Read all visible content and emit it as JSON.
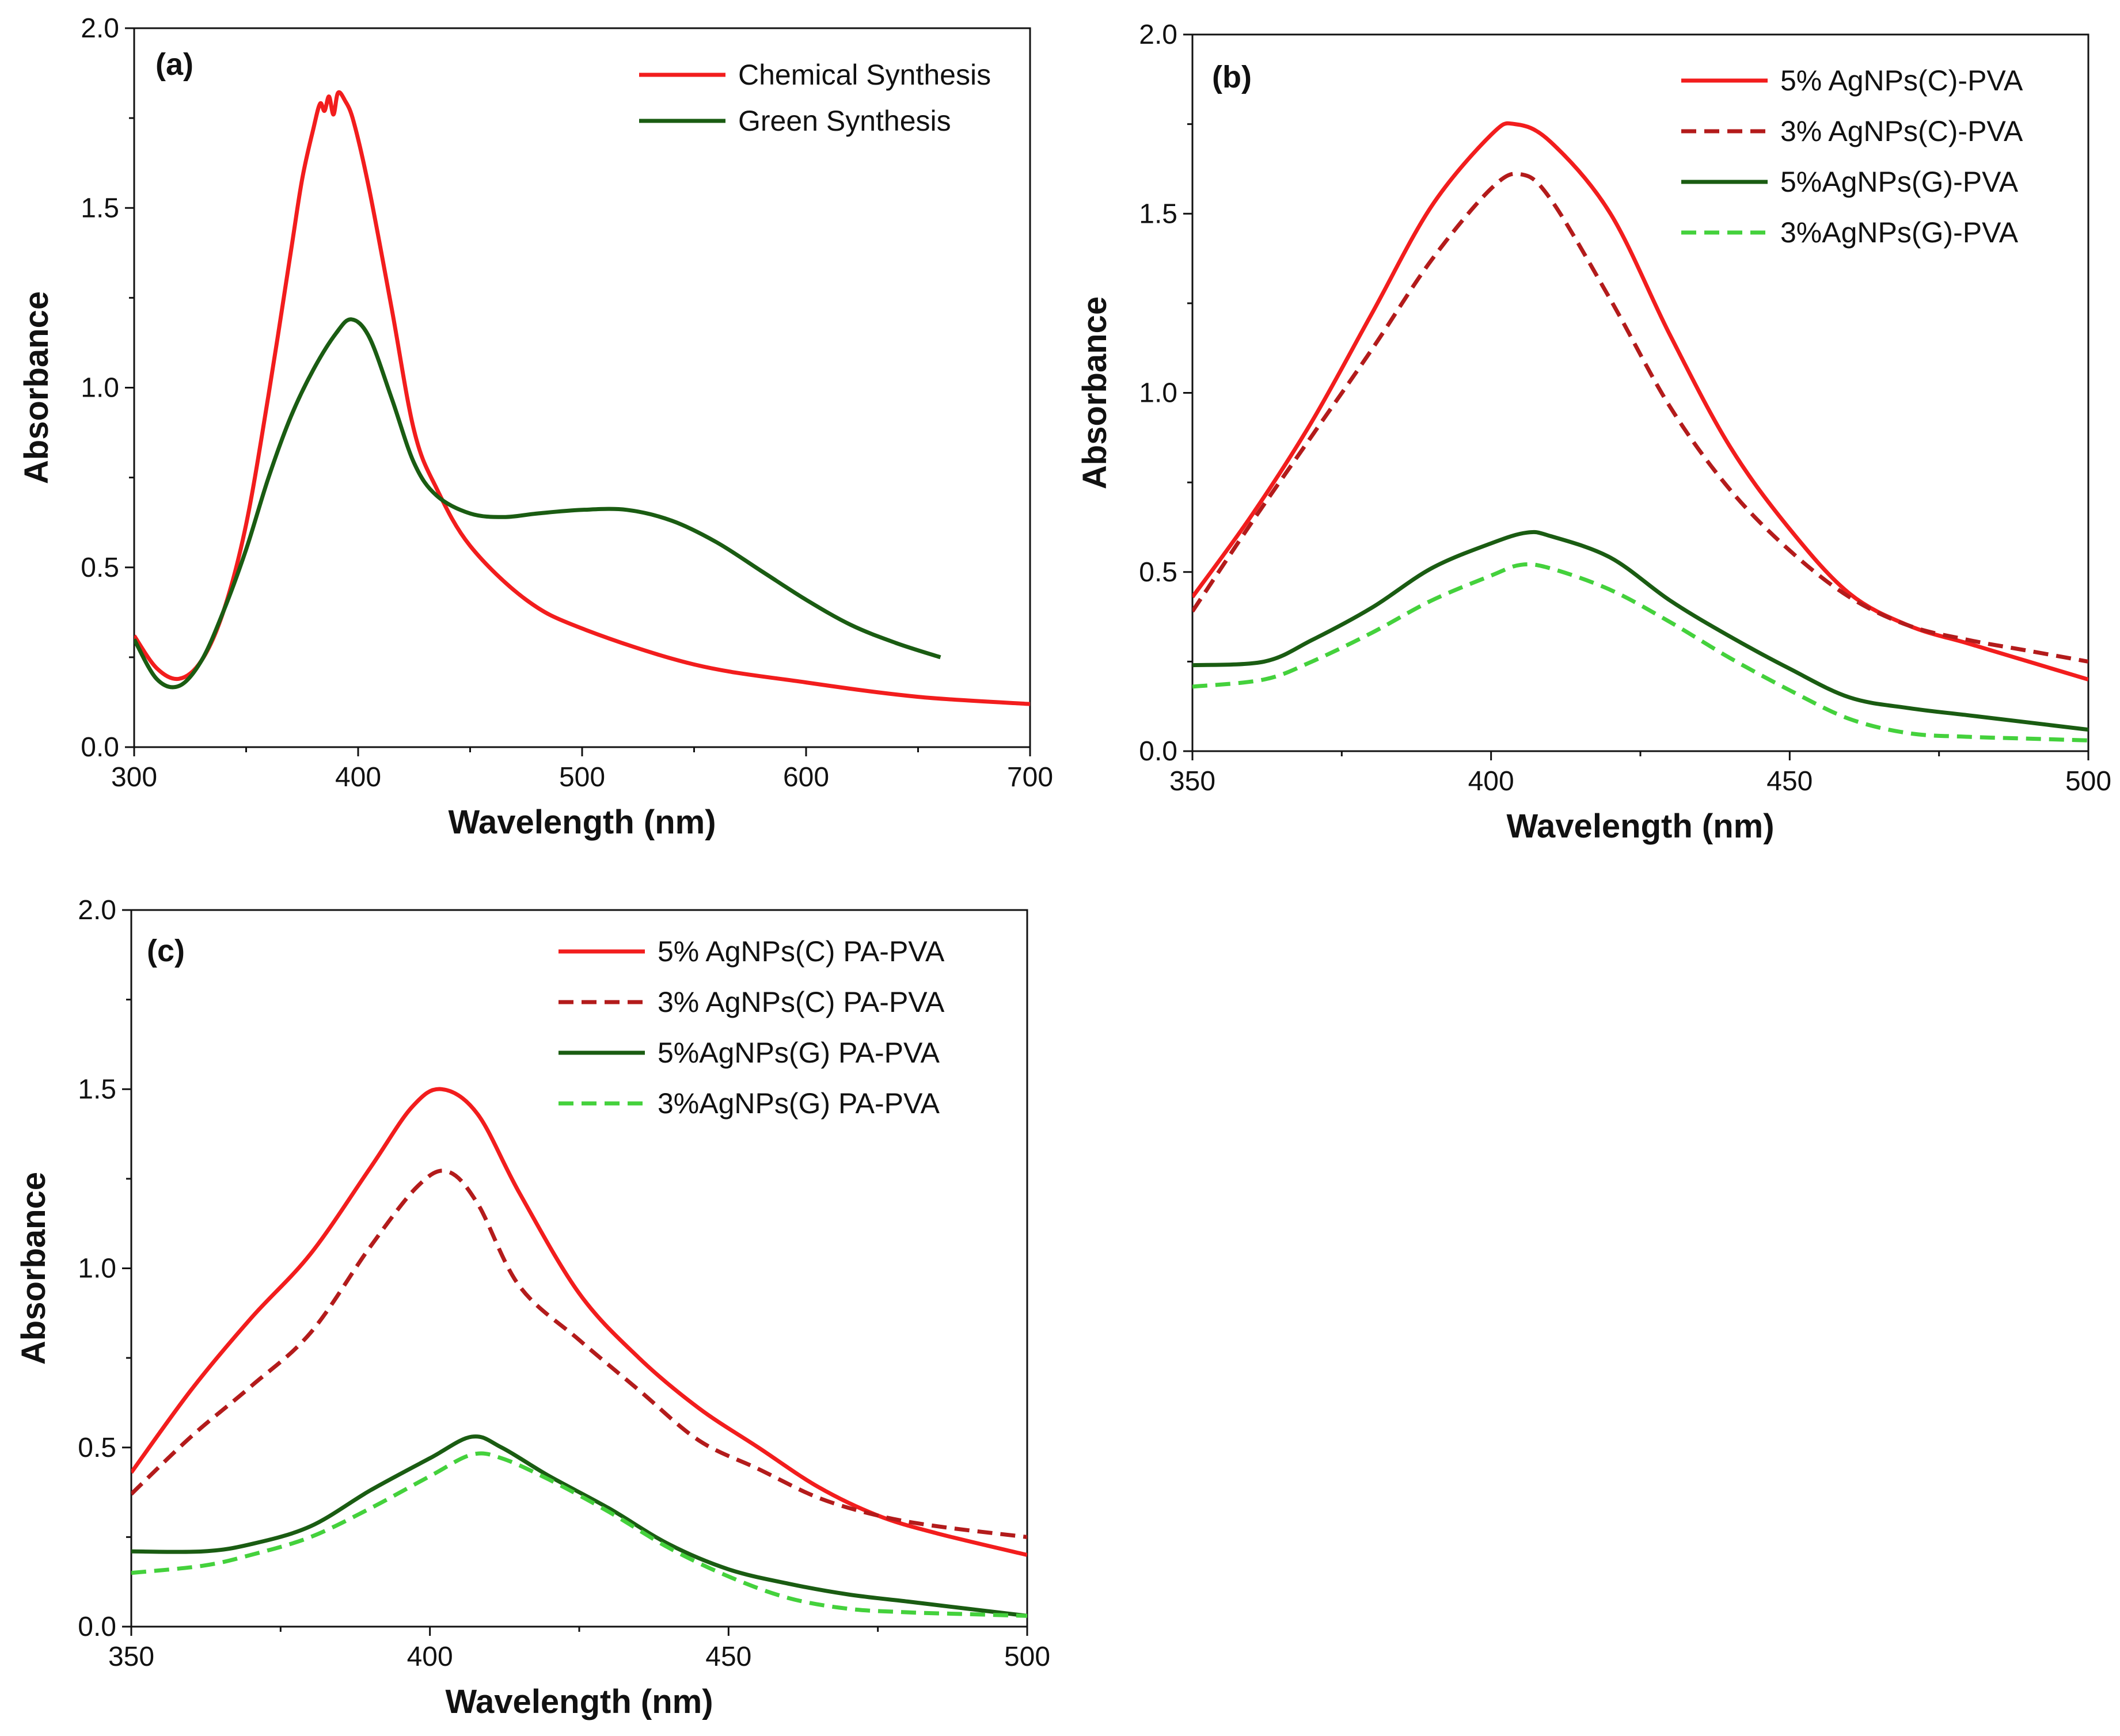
{
  "colors": {
    "red": "#f21d1d",
    "darkred": "#b31b1b",
    "darkgreen": "#1a5c12",
    "lightgreen": "#44d13c"
  },
  "chart_data": [
    {
      "type": "line",
      "panel_label": "(a)",
      "xlabel": "Wavelength (nm)",
      "ylabel": "Absorbance",
      "xlim": [
        300,
        700
      ],
      "ylim": [
        0,
        2.0
      ],
      "xticks": [
        300,
        400,
        500,
        600,
        700
      ],
      "yticks": [
        0.0,
        0.5,
        1.0,
        1.5,
        2.0
      ],
      "legend": "top-right",
      "series": [
        {
          "name": "Chemical Synthesis",
          "color": "red",
          "dash": "solid",
          "x": [
            300,
            310,
            320,
            330,
            340,
            350,
            360,
            370,
            375,
            380,
            383,
            385,
            387,
            389,
            391,
            394,
            398,
            405,
            415,
            425,
            435,
            450,
            475,
            500,
            550,
            600,
            650,
            700
          ],
          "y": [
            0.31,
            0.22,
            0.19,
            0.24,
            0.38,
            0.62,
            0.98,
            1.38,
            1.58,
            1.72,
            1.79,
            1.77,
            1.81,
            1.76,
            1.82,
            1.8,
            1.74,
            1.55,
            1.22,
            0.88,
            0.72,
            0.56,
            0.41,
            0.33,
            0.23,
            0.18,
            0.14,
            0.12
          ]
        },
        {
          "name": "Green Synthesis",
          "color": "darkgreen",
          "dash": "solid",
          "x": [
            300,
            310,
            320,
            330,
            340,
            350,
            360,
            370,
            380,
            390,
            397,
            405,
            415,
            425,
            435,
            450,
            465,
            480,
            500,
            520,
            540,
            560,
            580,
            600,
            620,
            640,
            660
          ],
          "y": [
            0.3,
            0.19,
            0.17,
            0.24,
            0.38,
            0.55,
            0.75,
            0.92,
            1.05,
            1.15,
            1.19,
            1.14,
            0.97,
            0.79,
            0.7,
            0.65,
            0.64,
            0.65,
            0.66,
            0.66,
            0.63,
            0.57,
            0.49,
            0.41,
            0.34,
            0.29,
            0.25
          ]
        }
      ]
    },
    {
      "type": "line",
      "panel_label": "(b)",
      "xlabel": "Wavelength (nm)",
      "ylabel": "Absorbance",
      "xlim": [
        350,
        500
      ],
      "ylim": [
        0,
        2.0
      ],
      "xticks": [
        350,
        400,
        450,
        500
      ],
      "yticks": [
        0.0,
        0.5,
        1.0,
        1.5,
        2.0
      ],
      "legend": "top-right",
      "series": [
        {
          "name": "5% AgNPs(C)-PVA",
          "color": "red",
          "dash": "solid",
          "x": [
            350,
            360,
            370,
            380,
            390,
            400,
            404,
            410,
            420,
            430,
            440,
            450,
            460,
            470,
            480,
            490,
            500
          ],
          "y": [
            0.43,
            0.66,
            0.92,
            1.22,
            1.52,
            1.72,
            1.75,
            1.7,
            1.5,
            1.16,
            0.85,
            0.62,
            0.44,
            0.35,
            0.3,
            0.25,
            0.2
          ]
        },
        {
          "name": "3% AgNPs(C)-PVA",
          "color": "darkred",
          "dash": "dashed",
          "x": [
            350,
            360,
            370,
            380,
            390,
            400,
            405,
            410,
            420,
            430,
            440,
            450,
            460,
            470,
            480,
            490,
            500
          ],
          "y": [
            0.39,
            0.64,
            0.88,
            1.12,
            1.37,
            1.57,
            1.61,
            1.54,
            1.26,
            0.96,
            0.73,
            0.56,
            0.43,
            0.35,
            0.31,
            0.28,
            0.25
          ]
        },
        {
          "name": "5%AgNPs(G)-PVA",
          "color": "darkgreen",
          "dash": "solid",
          "x": [
            350,
            362,
            370,
            380,
            390,
            400,
            406,
            410,
            420,
            430,
            440,
            450,
            460,
            470,
            480,
            490,
            500
          ],
          "y": [
            0.24,
            0.25,
            0.31,
            0.4,
            0.51,
            0.58,
            0.61,
            0.6,
            0.54,
            0.42,
            0.32,
            0.23,
            0.15,
            0.12,
            0.1,
            0.08,
            0.06
          ]
        },
        {
          "name": "3%AgNPs(G)-PVA",
          "color": "lightgreen",
          "dash": "dashed",
          "x": [
            350,
            362,
            370,
            380,
            390,
            400,
            405,
            410,
            420,
            430,
            440,
            450,
            460,
            470,
            480,
            490,
            500
          ],
          "y": [
            0.18,
            0.2,
            0.25,
            0.33,
            0.42,
            0.49,
            0.52,
            0.51,
            0.45,
            0.36,
            0.26,
            0.17,
            0.09,
            0.05,
            0.04,
            0.035,
            0.03
          ]
        }
      ]
    },
    {
      "type": "line",
      "panel_label": "(c)",
      "xlabel": "Wavelength (nm)",
      "ylabel": "Absorbance",
      "xlim": [
        350,
        500
      ],
      "ylim": [
        0,
        2.0
      ],
      "xticks": [
        350,
        400,
        450,
        500
      ],
      "yticks": [
        0.0,
        0.5,
        1.0,
        1.5,
        2.0
      ],
      "legend": "top-right",
      "series": [
        {
          "name": "5% AgNPs(C) PA-PVA",
          "color": "red",
          "dash": "solid",
          "x": [
            350,
            360,
            370,
            380,
            390,
            397,
            402,
            408,
            415,
            425,
            435,
            445,
            455,
            465,
            475,
            485,
            500
          ],
          "y": [
            0.43,
            0.66,
            0.86,
            1.04,
            1.28,
            1.45,
            1.5,
            1.43,
            1.21,
            0.93,
            0.75,
            0.61,
            0.5,
            0.39,
            0.31,
            0.26,
            0.2
          ]
        },
        {
          "name": "3% AgNPs(C) PA-PVA",
          "color": "darkred",
          "dash": "dashed",
          "x": [
            350,
            360,
            370,
            380,
            390,
            398,
            403,
            408,
            415,
            425,
            435,
            445,
            455,
            465,
            475,
            485,
            500
          ],
          "y": [
            0.37,
            0.53,
            0.67,
            0.82,
            1.06,
            1.23,
            1.27,
            1.18,
            0.95,
            0.8,
            0.66,
            0.52,
            0.44,
            0.36,
            0.31,
            0.28,
            0.25
          ]
        },
        {
          "name": "5%AgNPs(G) PA-PVA",
          "color": "darkgreen",
          "dash": "solid",
          "x": [
            350,
            362,
            370,
            380,
            390,
            400,
            407,
            412,
            420,
            430,
            440,
            450,
            460,
            470,
            480,
            490,
            500
          ],
          "y": [
            0.21,
            0.21,
            0.23,
            0.28,
            0.38,
            0.47,
            0.53,
            0.5,
            0.42,
            0.33,
            0.23,
            0.16,
            0.12,
            0.09,
            0.07,
            0.05,
            0.03
          ]
        },
        {
          "name": "3%AgNPs(G) PA-PVA",
          "color": "lightgreen",
          "dash": "dashed",
          "x": [
            350,
            362,
            370,
            380,
            390,
            400,
            407,
            412,
            420,
            430,
            440,
            450,
            460,
            470,
            480,
            490,
            500
          ],
          "y": [
            0.15,
            0.17,
            0.2,
            0.25,
            0.33,
            0.42,
            0.48,
            0.47,
            0.41,
            0.32,
            0.22,
            0.14,
            0.08,
            0.05,
            0.04,
            0.035,
            0.03
          ]
        }
      ]
    }
  ]
}
